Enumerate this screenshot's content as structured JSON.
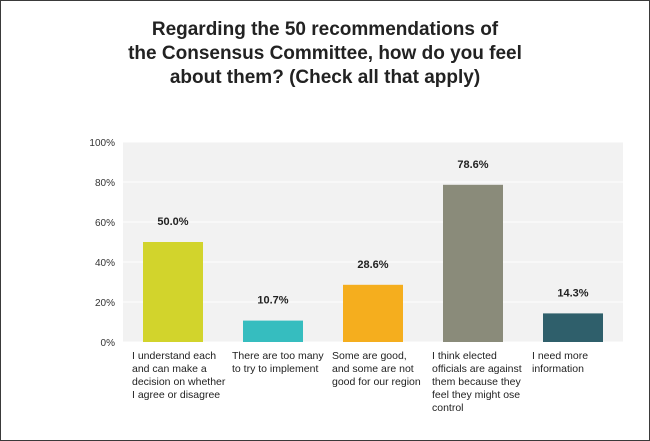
{
  "chart_data": {
    "type": "bar",
    "title": "Regarding the 50 recommendations of\nthe Consensus Committee, how do you feel\nabout them? (Check all that apply)",
    "xlabel": "",
    "ylabel": "",
    "ylim": [
      0,
      100
    ],
    "yticks": [
      "0%",
      "20%",
      "40%",
      "60%",
      "80%",
      "100%"
    ],
    "categories": [
      "I understand each and can make a decision on whether I agree or disagree",
      "There are too many to try to implement",
      "Some are good, and some are not good for our region",
      "I think elected officials are against them because they feel they might ose control",
      "I need more information"
    ],
    "values": [
      50.0,
      10.7,
      28.6,
      78.6,
      14.3
    ],
    "data_labels": [
      "50.0%",
      "10.7%",
      "28.6%",
      "78.6%",
      "14.3%"
    ],
    "colors": [
      "#d2d42c",
      "#36bdbf",
      "#f5ae1e",
      "#8a8b7a",
      "#2f5f6b"
    ],
    "grid": true,
    "legend": "none",
    "background": "#f2f2f2"
  }
}
